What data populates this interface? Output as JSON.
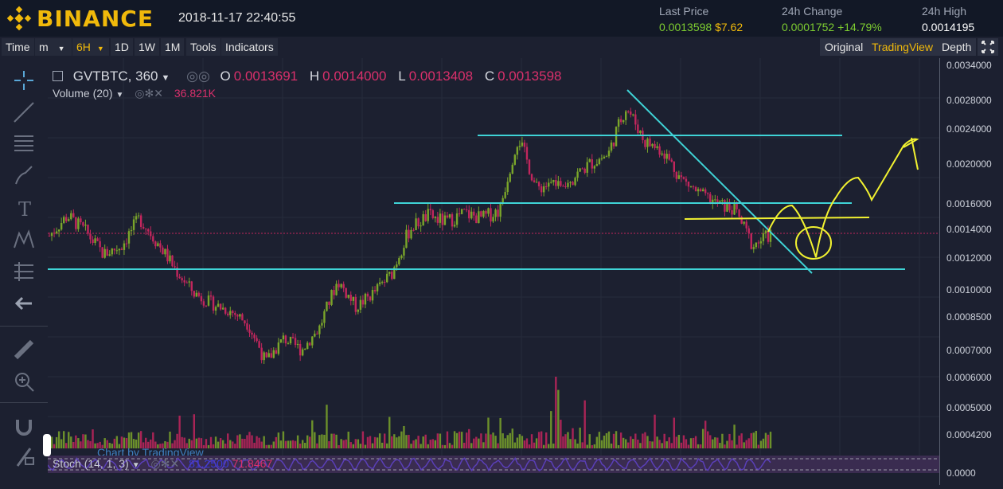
{
  "header": {
    "brand": "BINANCE",
    "datetime": "2018-11-17 22:40:55",
    "last_price": {
      "label": "Last Price",
      "value": "0.0013598",
      "usd": "$7.62"
    },
    "change_24h": {
      "label": "24h Change",
      "value": "0.0001752",
      "percent": "+14.79%"
    },
    "high_24h": {
      "label": "24h High",
      "value": "0.0014195"
    }
  },
  "toolbar": {
    "left": [
      "Time",
      "m",
      "6H",
      "1D",
      "1W",
      "1M",
      "Tools",
      "Indicators"
    ],
    "right": [
      "Original",
      "TradingView",
      "Depth"
    ]
  },
  "legend": {
    "symbol": "GVTBTC, 360",
    "o_label": "O",
    "o_value": "0.0013691",
    "h_label": "H",
    "h_value": "0.0014000",
    "l_label": "L",
    "l_value": "0.0013408",
    "c_label": "C",
    "c_value": "0.0013598",
    "volume_label": "Volume (20)",
    "volume_value": "36.821K",
    "stoch_label": "Stoch (14, 1, 3)",
    "stoch_v1": "81.2500",
    "stoch_v2": "71.8467",
    "watermark": "Chart by TradingView"
  },
  "price_axis": {
    "ticks": [
      "0.0034000",
      "0.0028000",
      "0.0024000",
      "0.0020000",
      "0.0016000",
      "0.0014000",
      "0.0012000",
      "0.0010000",
      "0.0008500",
      "0.0007000",
      "0.0006000",
      "0.0005000",
      "0.0004200",
      "0.0000"
    ]
  },
  "colors": {
    "up": "#7aa52a",
    "down": "#c2265d",
    "trendline": "#3fd3d6",
    "drawing": "#f2f230",
    "accent": "#f0b90b"
  },
  "chart_data": {
    "type": "line",
    "title": "GVTBTC, 360",
    "description_series": [
      {
        "name": "",
        "values": [
          0.00135,
          0.0015,
          0.00138,
          0.00122,
          0.00128,
          0.00148,
          0.0013,
          0.00112,
          0.00098,
          0.00092,
          0.00088,
          0.00082,
          0.00065,
          0.00075,
          0.0007,
          0.0008,
          0.00105,
          0.0009,
          0.00098,
          0.0011,
          0.0014,
          0.0015,
          0.00145,
          0.00152,
          0.00148,
          0.00155,
          0.0023,
          0.00175,
          0.0018,
          0.00185,
          0.002,
          0.0021,
          0.0027,
          0.00225,
          0.00215,
          0.00185,
          0.0017,
          0.0016,
          0.00155,
          0.00128,
          0.00136
        ]
      }
    ]
  }
}
